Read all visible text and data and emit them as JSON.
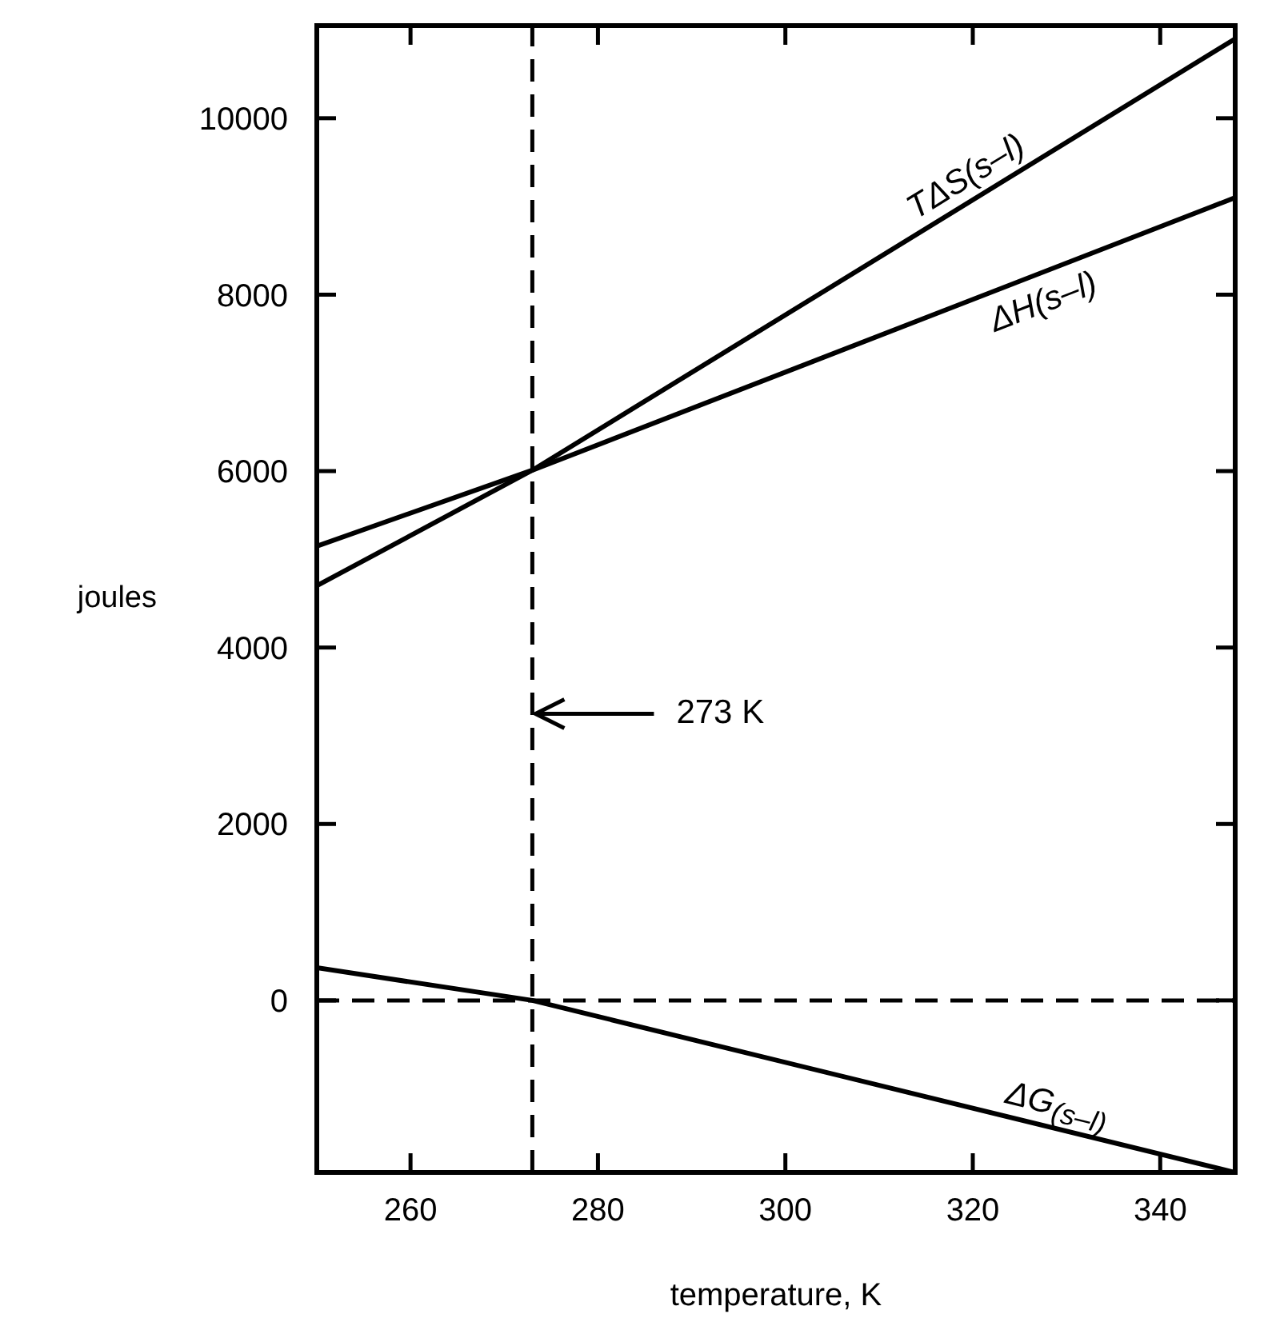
{
  "chart_data": {
    "type": "line",
    "xlabel": "temperature, K",
    "ylabel": "joules",
    "xlim": [
      250,
      348
    ],
    "xticks": [
      260,
      280,
      300,
      320,
      340
    ],
    "ylim": [
      -1950,
      11050
    ],
    "yticks": [
      0,
      2000,
      4000,
      6000,
      8000,
      10000
    ],
    "series": [
      {
        "name": "TΔS(s–l)",
        "color": "#000000",
        "x": [
          250,
          273,
          348
        ],
        "values": [
          4700,
          6010,
          10900
        ]
      },
      {
        "name": "ΔH(s–l)",
        "color": "#000000",
        "x": [
          250,
          273,
          348
        ],
        "values": [
          5150,
          6010,
          9100
        ]
      },
      {
        "name": "ΔG$_{(s–l)}$",
        "color": "#000000",
        "x": [
          250,
          273,
          348
        ],
        "values": [
          370,
          0,
          -1950
        ]
      }
    ],
    "ref_lines": [
      {
        "axis": "x",
        "value": 273,
        "line_style": "dashed",
        "color": "#000000"
      },
      {
        "axis": "y",
        "value": 0,
        "line_style": "dashed",
        "color": "#000000"
      }
    ],
    "annotations": [
      "273 K"
    ]
  }
}
